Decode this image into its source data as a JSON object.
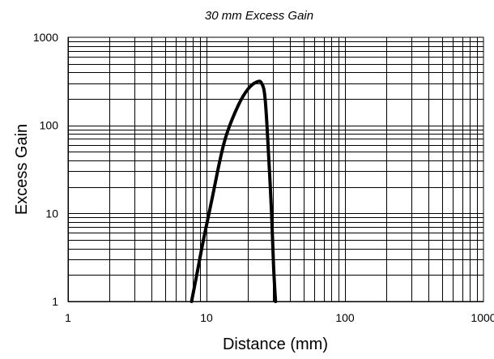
{
  "chart_data": {
    "type": "line",
    "title": "30 mm Excess Gain",
    "xlabel": "Distance (mm)",
    "ylabel": "Excess Gain",
    "x_scale": "log",
    "y_scale": "log",
    "xlim": [
      1,
      1000
    ],
    "ylim": [
      1,
      1000
    ],
    "x_ticks": [
      1,
      10,
      100,
      1000
    ],
    "y_ticks": [
      1,
      10,
      100,
      1000
    ],
    "x_tick_labels": [
      "1",
      "10",
      "100",
      "1000"
    ],
    "y_tick_labels": [
      "1",
      "10",
      "100",
      "1000"
    ],
    "grid": true,
    "series": [
      {
        "color": "#000000",
        "x": [
          7.8,
          8.5,
          9.5,
          11,
          12.5,
          14,
          17,
          20,
          23,
          25,
          26.5,
          28,
          29.5,
          30.5,
          31.5
        ],
        "y": [
          1,
          2,
          5,
          15,
          40,
          80,
          170,
          260,
          310,
          300,
          200,
          50,
          10,
          2.5,
          1
        ]
      }
    ]
  }
}
